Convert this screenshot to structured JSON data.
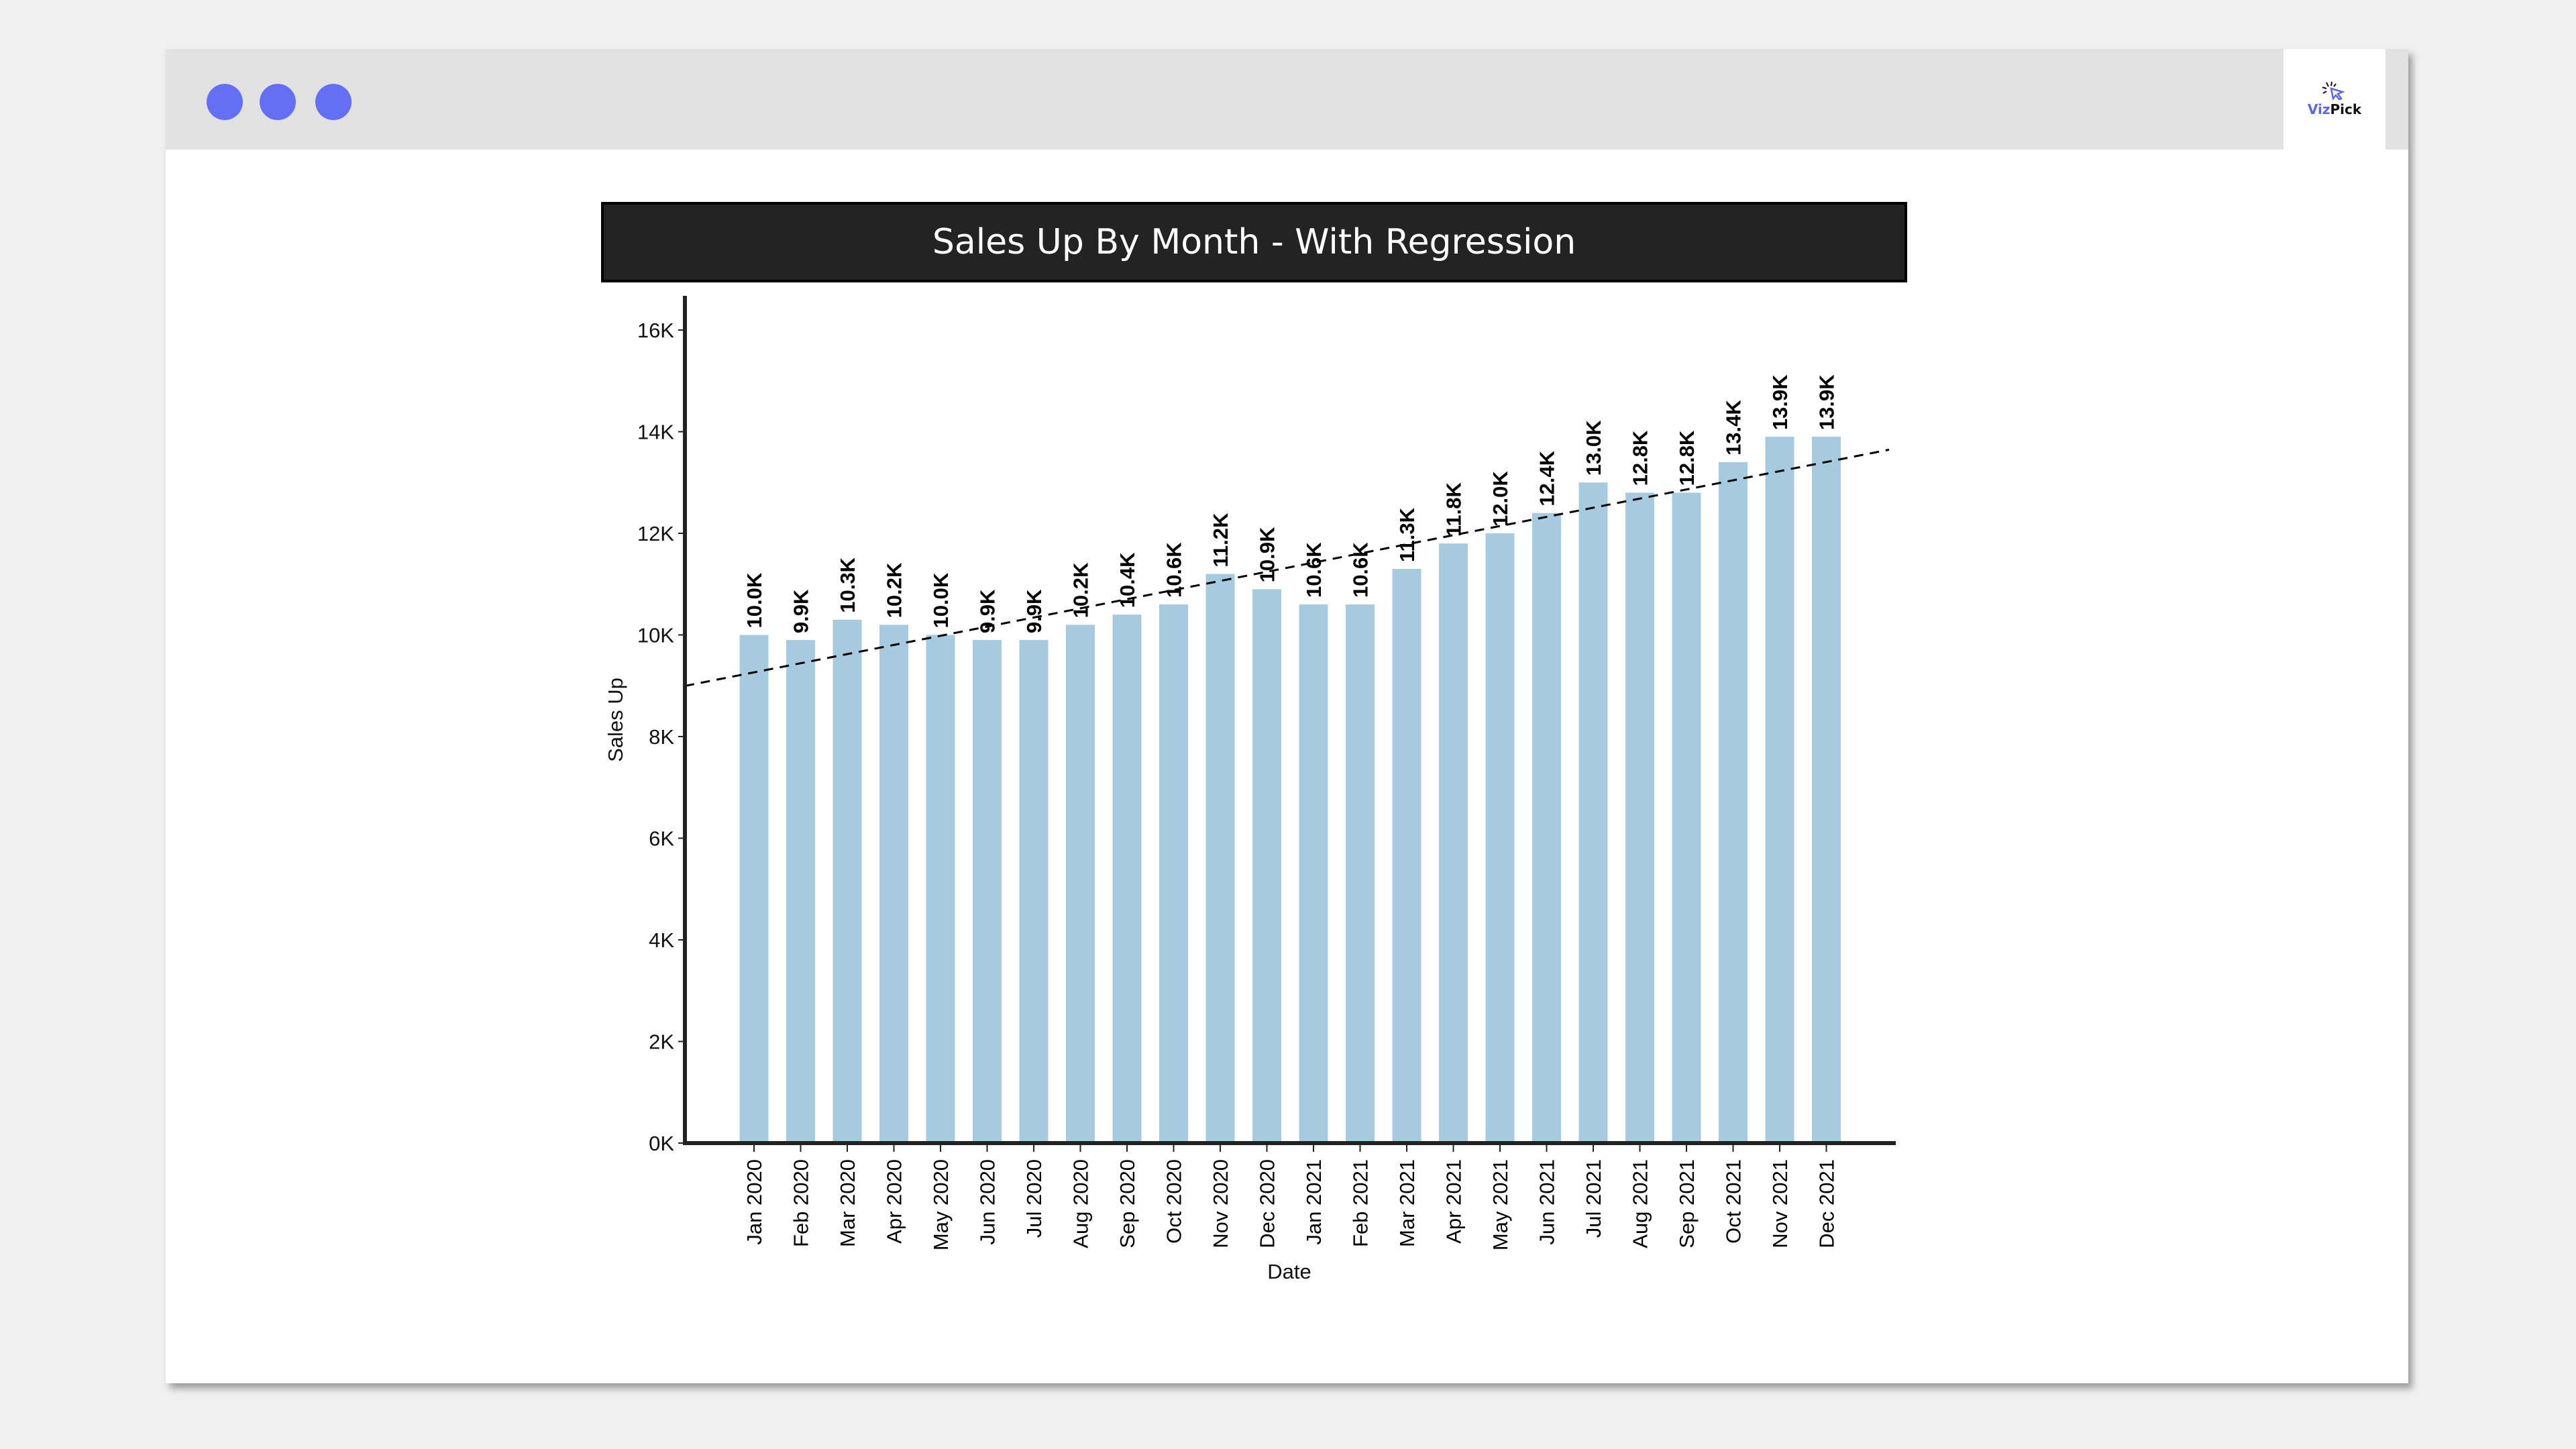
{
  "window": {
    "dots_color": "#636ff4",
    "logo": {
      "text_part1": "Viz",
      "text_part2": "Pick",
      "icon": "cursor-click-icon"
    }
  },
  "chart_data": {
    "type": "bar",
    "title": "Sales Up By Month - With Regression",
    "xlabel": "Date",
    "ylabel": "Sales Up",
    "ylim": [
      0,
      16000
    ],
    "yticks": [
      0,
      2000,
      4000,
      6000,
      8000,
      10000,
      12000,
      14000,
      16000
    ],
    "ytick_labels": [
      "0K",
      "2K",
      "4K",
      "6K",
      "8K",
      "10K",
      "12K",
      "14K",
      "16K"
    ],
    "grid": false,
    "bar_color": "#a6cadf",
    "trendline": {
      "type": "linear regression",
      "style": "dashed",
      "color": "#000000"
    },
    "categories": [
      "Jan 2020",
      "Feb 2020",
      "Mar 2020",
      "Apr 2020",
      "May 2020",
      "Jun 2020",
      "Jul 2020",
      "Aug 2020",
      "Sep 2020",
      "Oct 2020",
      "Nov 2020",
      "Dec 2020",
      "Jan 2021",
      "Feb 2021",
      "Mar 2021",
      "Apr 2021",
      "May 2021",
      "Jun 2021",
      "Jul 2021",
      "Aug 2021",
      "Sep 2021",
      "Oct 2021",
      "Nov 2021",
      "Dec 2021"
    ],
    "values": [
      10000,
      9900,
      10300,
      10200,
      10000,
      9900,
      9900,
      10200,
      10400,
      10600,
      11200,
      10900,
      10600,
      10600,
      11300,
      11800,
      12000,
      12400,
      13000,
      12800,
      12800,
      13400,
      13900,
      13900
    ],
    "data_labels": [
      "10.0K",
      "9.9K",
      "10.3K",
      "10.2K",
      "10.0K",
      "9.9K",
      "9.9K",
      "10.2K",
      "10.4K",
      "10.6K",
      "11.2K",
      "10.9K",
      "10.6K",
      "10.6K",
      "11.3K",
      "11.8K",
      "12.0K",
      "12.4K",
      "13.0K",
      "12.8K",
      "12.8K",
      "13.4K",
      "13.9K",
      "13.9K"
    ]
  }
}
